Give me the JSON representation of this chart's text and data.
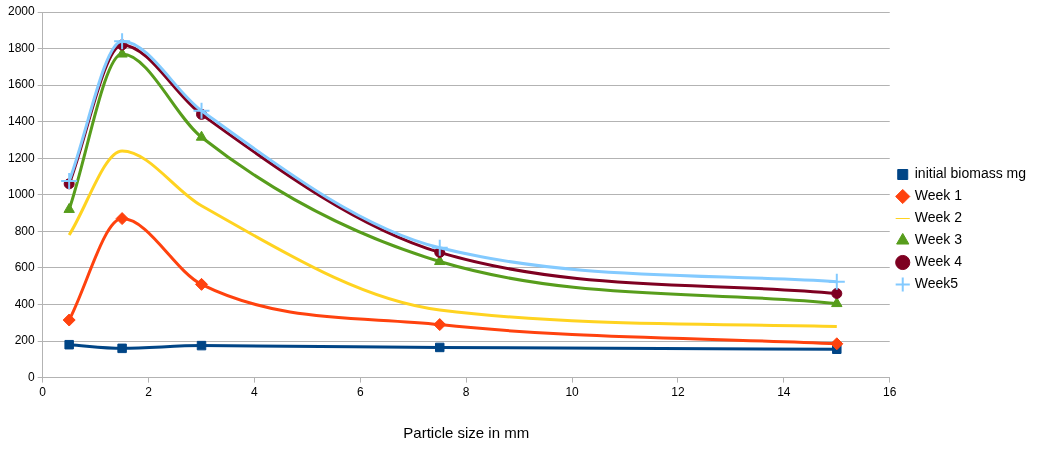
{
  "chart_data": {
    "type": "line",
    "xlabel": "Particle size in mm",
    "x": [
      0.5,
      1.5,
      3,
      7.5,
      15
    ],
    "xlim": [
      0,
      16
    ],
    "xticks": [
      0,
      2,
      4,
      6,
      8,
      10,
      12,
      14,
      16
    ],
    "ylim": [
      0,
      2000
    ],
    "yticks": [
      0,
      200,
      400,
      600,
      800,
      1000,
      1200,
      1400,
      1600,
      1800,
      2000
    ],
    "grid": "y",
    "legend": "right",
    "series": [
      {
        "name": "initial biomass mg",
        "color": "#004586",
        "marker": "square",
        "values": [
          180,
          160,
          175,
          165,
          155
        ]
      },
      {
        "name": "Week 1",
        "color": "#ff420e",
        "marker": "diamond",
        "values": [
          315,
          870,
          510,
          290,
          185
        ]
      },
      {
        "name": "Week 2",
        "color": "#ffd320",
        "marker": "none",
        "values": [
          780,
          1240,
          940,
          370,
          280
        ]
      },
      {
        "name": "Week 3",
        "color": "#579d1c",
        "marker": "triangle",
        "values": [
          920,
          1770,
          1315,
          635,
          405
        ]
      },
      {
        "name": "Week 4",
        "color": "#7e0021",
        "marker": "circle",
        "values": [
          1060,
          1820,
          1440,
          685,
          460
        ]
      },
      {
        "name": "Week5",
        "color": "#83caff",
        "marker": "cross",
        "values": [
          1075,
          1840,
          1460,
          710,
          525
        ]
      }
    ]
  }
}
